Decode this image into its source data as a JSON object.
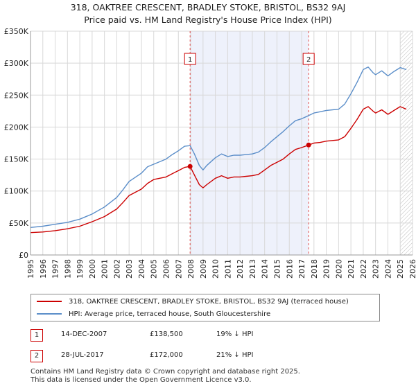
{
  "chart_data": {
    "type": "line",
    "title": "318, OAKTREE CRESCENT, BRADLEY STOKE, BRISTOL, BS32 9AJ",
    "subtitle": "Price paid vs. HM Land Registry's House Price Index (HPI)",
    "xlabel": "",
    "ylabel": "",
    "xlim": [
      1995,
      2026
    ],
    "ylim": [
      0,
      350000
    ],
    "x_ticks": [
      "1995",
      "1996",
      "1997",
      "1998",
      "1999",
      "2000",
      "2001",
      "2002",
      "2003",
      "2004",
      "2005",
      "2006",
      "2007",
      "2008",
      "2009",
      "2010",
      "2011",
      "2012",
      "2013",
      "2014",
      "2015",
      "2016",
      "2017",
      "2018",
      "2019",
      "2020",
      "2021",
      "2022",
      "2023",
      "2024",
      "2025",
      "2026"
    ],
    "y_ticks": [
      {
        "value": 0,
        "label": "£0"
      },
      {
        "value": 50000,
        "label": "£50K"
      },
      {
        "value": 100000,
        "label": "£100K"
      },
      {
        "value": 150000,
        "label": "£150K"
      },
      {
        "value": 200000,
        "label": "£200K"
      },
      {
        "value": 250000,
        "label": "£250K"
      },
      {
        "value": 300000,
        "label": "£300K"
      },
      {
        "value": 350000,
        "label": "£350K"
      }
    ],
    "grid": true,
    "shaded_region": {
      "from": 2007.95,
      "to": 2017.57
    },
    "future_hatch_from": 2025.0,
    "series": [
      {
        "name": "318, OAKTREE CRESCENT, BRADLEY STOKE, BRISTOL, BS32 9AJ (terraced house)",
        "color": "#cc0000",
        "x": [
          1995.0,
          1996.0,
          1997.0,
          1998.0,
          1999.0,
          2000.0,
          2001.0,
          2002.0,
          2002.5,
          2003.0,
          2004.0,
          2004.5,
          2005.0,
          2006.0,
          2006.5,
          2007.0,
          2007.5,
          2007.95,
          2008.3,
          2008.7,
          2009.0,
          2009.3,
          2010.0,
          2010.5,
          2011.0,
          2011.5,
          2012.0,
          2012.5,
          2013.0,
          2013.5,
          2014.0,
          2014.5,
          2015.0,
          2015.5,
          2016.0,
          2016.5,
          2017.0,
          2017.57,
          2018.0,
          2018.5,
          2019.0,
          2019.5,
          2020.0,
          2020.5,
          2021.0,
          2021.5,
          2022.0,
          2022.4,
          2022.8,
          2023.0,
          2023.5,
          2024.0,
          2024.5,
          2025.0,
          2025.5
        ],
        "y": [
          35000,
          36000,
          38000,
          41000,
          45000,
          52000,
          60000,
          72000,
          82000,
          93000,
          103000,
          112000,
          118000,
          122000,
          127000,
          132000,
          137000,
          138500,
          125000,
          110000,
          105000,
          110000,
          120000,
          124000,
          120000,
          122000,
          122000,
          123000,
          124000,
          126000,
          133000,
          140000,
          145000,
          150000,
          158000,
          165000,
          168000,
          172000,
          175000,
          176000,
          178000,
          179000,
          180000,
          185000,
          198000,
          212000,
          228000,
          232000,
          225000,
          222000,
          227000,
          220000,
          226000,
          232000,
          228000
        ]
      },
      {
        "name": "HPI: Average price, terraced house, South Gloucestershire",
        "color": "#5b8ec9",
        "x": [
          1995.0,
          1996.0,
          1997.0,
          1998.0,
          1999.0,
          2000.0,
          2001.0,
          2002.0,
          2002.5,
          2003.0,
          2004.0,
          2004.5,
          2005.0,
          2006.0,
          2006.5,
          2007.0,
          2007.5,
          2007.95,
          2008.3,
          2008.7,
          2009.0,
          2009.3,
          2010.0,
          2010.5,
          2011.0,
          2011.5,
          2012.0,
          2012.5,
          2013.0,
          2013.5,
          2014.0,
          2014.5,
          2015.0,
          2015.5,
          2016.0,
          2016.5,
          2017.0,
          2017.57,
          2018.0,
          2018.5,
          2019.0,
          2019.5,
          2020.0,
          2020.5,
          2021.0,
          2021.5,
          2022.0,
          2022.4,
          2022.8,
          2023.0,
          2023.5,
          2024.0,
          2024.5,
          2025.0,
          2025.5
        ],
        "y": [
          43000,
          45000,
          48000,
          51000,
          56000,
          64000,
          75000,
          90000,
          102000,
          115000,
          128000,
          138000,
          142000,
          150000,
          157000,
          163000,
          170000,
          171000,
          158000,
          140000,
          133000,
          140000,
          152000,
          158000,
          154000,
          156000,
          156000,
          157000,
          158000,
          161000,
          168000,
          177000,
          185000,
          193000,
          202000,
          210000,
          213000,
          218000,
          222000,
          224000,
          226000,
          227000,
          228000,
          236000,
          252000,
          270000,
          290000,
          294000,
          285000,
          282000,
          288000,
          280000,
          287000,
          293000,
          290000
        ]
      }
    ],
    "annotations": [
      {
        "label": "1",
        "x": 2007.95,
        "y": 138500
      },
      {
        "label": "2",
        "x": 2017.57,
        "y": 172000
      }
    ],
    "legend_position": "bottom"
  },
  "legend": {
    "items": [
      {
        "label": "318, OAKTREE CRESCENT, BRADLEY STOKE, BRISTOL, BS32 9AJ (terraced house)",
        "color": "#cc0000"
      },
      {
        "label": "HPI: Average price, terraced house, South Gloucestershire",
        "color": "#5b8ec9"
      }
    ]
  },
  "table": {
    "rows": [
      {
        "num": "1",
        "date": "14-DEC-2007",
        "price": "£138,500",
        "hpi": "19% ↓ HPI"
      },
      {
        "num": "2",
        "date": "28-JUL-2017",
        "price": "£172,000",
        "hpi": "21% ↓ HPI"
      }
    ]
  },
  "footer": {
    "line1": "Contains HM Land Registry data © Crown copyright and database right 2025.",
    "line2": "This data is licensed under the Open Government Licence v3.0."
  }
}
